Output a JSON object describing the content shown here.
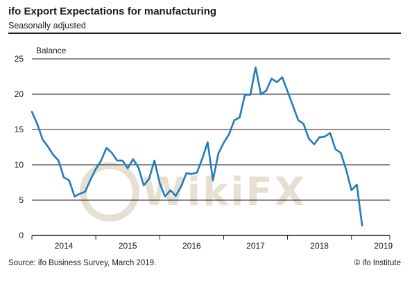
{
  "header": {
    "title": "ifo Export Expectations for manufacturing",
    "subtitle": "Seasonally adjusted"
  },
  "footer": {
    "source": "Source: ifo Business Survey, March 2019.",
    "credit": "© ifo Institute"
  },
  "watermark": {
    "text": "WikiFX",
    "color": "#e6e0d2"
  },
  "colors": {
    "line": "#1f7bbf",
    "grid": "#1a1a1a"
  },
  "chart_data": {
    "type": "line",
    "title": "ifo Export Expectations for manufacturing",
    "subtitle": "Seasonally adjusted",
    "ylabel": "Balance",
    "xlabel": "",
    "ylim": [
      0,
      25
    ],
    "yticks": [
      0,
      5,
      10,
      15,
      20,
      25
    ],
    "xlim": [
      2014,
      2019.6
    ],
    "year_labels": [
      "2014",
      "2015",
      "2016",
      "2017",
      "2018",
      "2019"
    ],
    "grid": "horizontal",
    "x": [
      2014.0,
      2014.083,
      2014.167,
      2014.25,
      2014.333,
      2014.417,
      2014.5,
      2014.583,
      2014.667,
      2014.75,
      2014.833,
      2014.917,
      2015.0,
      2015.083,
      2015.167,
      2015.25,
      2015.333,
      2015.417,
      2015.5,
      2015.583,
      2015.667,
      2015.75,
      2015.833,
      2015.917,
      2016.0,
      2016.083,
      2016.167,
      2016.25,
      2016.333,
      2016.417,
      2016.5,
      2016.583,
      2016.667,
      2016.75,
      2016.833,
      2016.917,
      2017.0,
      2017.083,
      2017.167,
      2017.25,
      2017.333,
      2017.417,
      2017.5,
      2017.583,
      2017.667,
      2017.75,
      2017.833,
      2017.917,
      2018.0,
      2018.083,
      2018.167,
      2018.25,
      2018.333,
      2018.417,
      2018.5,
      2018.583,
      2018.667,
      2018.75,
      2018.833,
      2018.917,
      2019.0,
      2019.083,
      2019.167
    ],
    "y": [
      17.5,
      15.8,
      13.6,
      12.6,
      11.4,
      10.6,
      8.2,
      7.8,
      5.5,
      5.9,
      6.2,
      7.9,
      9.4,
      10.6,
      12.4,
      11.7,
      10.6,
      10.6,
      9.5,
      10.8,
      9.6,
      7.1,
      8.0,
      10.6,
      7.4,
      5.5,
      6.4,
      5.6,
      6.9,
      8.8,
      8.7,
      8.9,
      10.9,
      13.2,
      7.8,
      11.6,
      13.1,
      14.3,
      16.3,
      16.7,
      19.9,
      19.9,
      23.8,
      20.0,
      20.5,
      22.2,
      21.7,
      22.4,
      20.4,
      18.4,
      16.3,
      15.8,
      13.7,
      12.9,
      13.9,
      14.0,
      14.5,
      12.2,
      11.7,
      9.3,
      6.4,
      7.2,
      1.4
    ],
    "series": [
      {
        "color": "#1f7bbf"
      }
    ]
  }
}
